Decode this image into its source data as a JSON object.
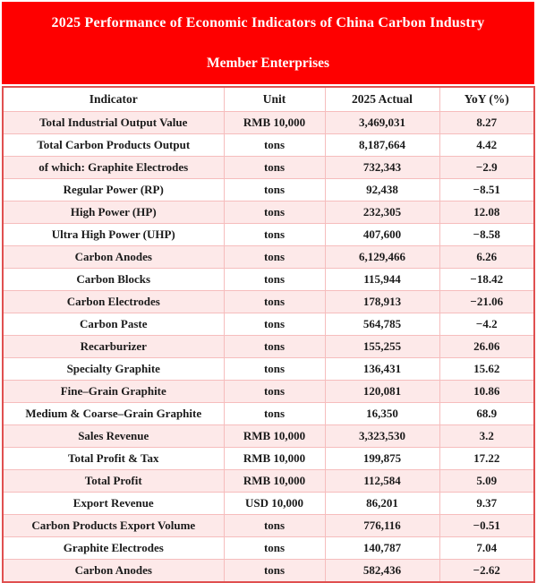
{
  "banner": {
    "title_line1": "2025 Performance of Economic Indicators of China Carbon Industry",
    "title_line2": "Member Enterprises"
  },
  "table": {
    "columns": [
      "Indicator",
      "Unit",
      "2025 Actual",
      "YoY (%)"
    ],
    "rows": [
      {
        "indicator": "Total Industrial Output Value",
        "unit": "RMB 10,000",
        "actual": "3,469,031",
        "yoy": "8.27",
        "trend": "up"
      },
      {
        "indicator": "Total Carbon Products Output",
        "unit": "tons",
        "actual": "8,187,664",
        "yoy": "4.42",
        "trend": "up"
      },
      {
        "indicator": "of which: Graphite Electrodes",
        "unit": "tons",
        "actual": "732,343",
        "yoy": "−2.9",
        "trend": "down"
      },
      {
        "indicator": "Regular Power (RP)",
        "unit": "tons",
        "actual": "92,438",
        "yoy": "−8.51",
        "trend": "down"
      },
      {
        "indicator": "High Power (HP)",
        "unit": "tons",
        "actual": "232,305",
        "yoy": "12.08",
        "trend": "up"
      },
      {
        "indicator": "Ultra High Power (UHP)",
        "unit": "tons",
        "actual": "407,600",
        "yoy": "−8.58",
        "trend": "down"
      },
      {
        "indicator": "Carbon Anodes",
        "unit": "tons",
        "actual": "6,129,466",
        "yoy": "6.26",
        "trend": "up"
      },
      {
        "indicator": "Carbon Blocks",
        "unit": "tons",
        "actual": "115,944",
        "yoy": "−18.42",
        "trend": "down"
      },
      {
        "indicator": "Carbon Electrodes",
        "unit": "tons",
        "actual": "178,913",
        "yoy": "−21.06",
        "trend": "down"
      },
      {
        "indicator": "Carbon Paste",
        "unit": "tons",
        "actual": "564,785",
        "yoy": "−4.2",
        "trend": "down"
      },
      {
        "indicator": "Recarburizer",
        "unit": "tons",
        "actual": "155,255",
        "yoy": "26.06",
        "trend": "up"
      },
      {
        "indicator": "Specialty Graphite",
        "unit": "tons",
        "actual": "136,431",
        "yoy": "15.62",
        "trend": "up"
      },
      {
        "indicator": "Fine–Grain Graphite",
        "unit": "tons",
        "actual": "120,081",
        "yoy": "10.86",
        "trend": "up"
      },
      {
        "indicator": "Medium & Coarse–Grain Graphite",
        "unit": "tons",
        "actual": "16,350",
        "yoy": "68.9",
        "trend": "up"
      },
      {
        "indicator": "Sales Revenue",
        "unit": "RMB 10,000",
        "actual": "3,323,530",
        "yoy": "3.2",
        "trend": "up"
      },
      {
        "indicator": "Total Profit & Tax",
        "unit": "RMB 10,000",
        "actual": "199,875",
        "yoy": "17.22",
        "trend": "up"
      },
      {
        "indicator": "Total Profit",
        "unit": "RMB 10,000",
        "actual": "112,584",
        "yoy": "5.09",
        "trend": "up"
      },
      {
        "indicator": "Export Revenue",
        "unit": "USD 10,000",
        "actual": "86,201",
        "yoy": "9.37",
        "trend": "up"
      },
      {
        "indicator": "Carbon Products Export Volume",
        "unit": "tons",
        "actual": "776,116",
        "yoy": "−0.51",
        "trend": "down"
      },
      {
        "indicator": "Graphite Electrodes",
        "unit": "tons",
        "actual": "140,787",
        "yoy": "7.04",
        "trend": "up"
      },
      {
        "indicator": "Carbon Anodes",
        "unit": "tons",
        "actual": "582,436",
        "yoy": "−2.62",
        "trend": "down"
      }
    ]
  },
  "colors": {
    "banner_red": "#FE0000",
    "row_pink": "#FDE9E9",
    "inner_border": "#F6BDBD",
    "outer_border": "#E05050",
    "yoy_positive": "#FF0000",
    "yoy_negative": "#00A651"
  }
}
